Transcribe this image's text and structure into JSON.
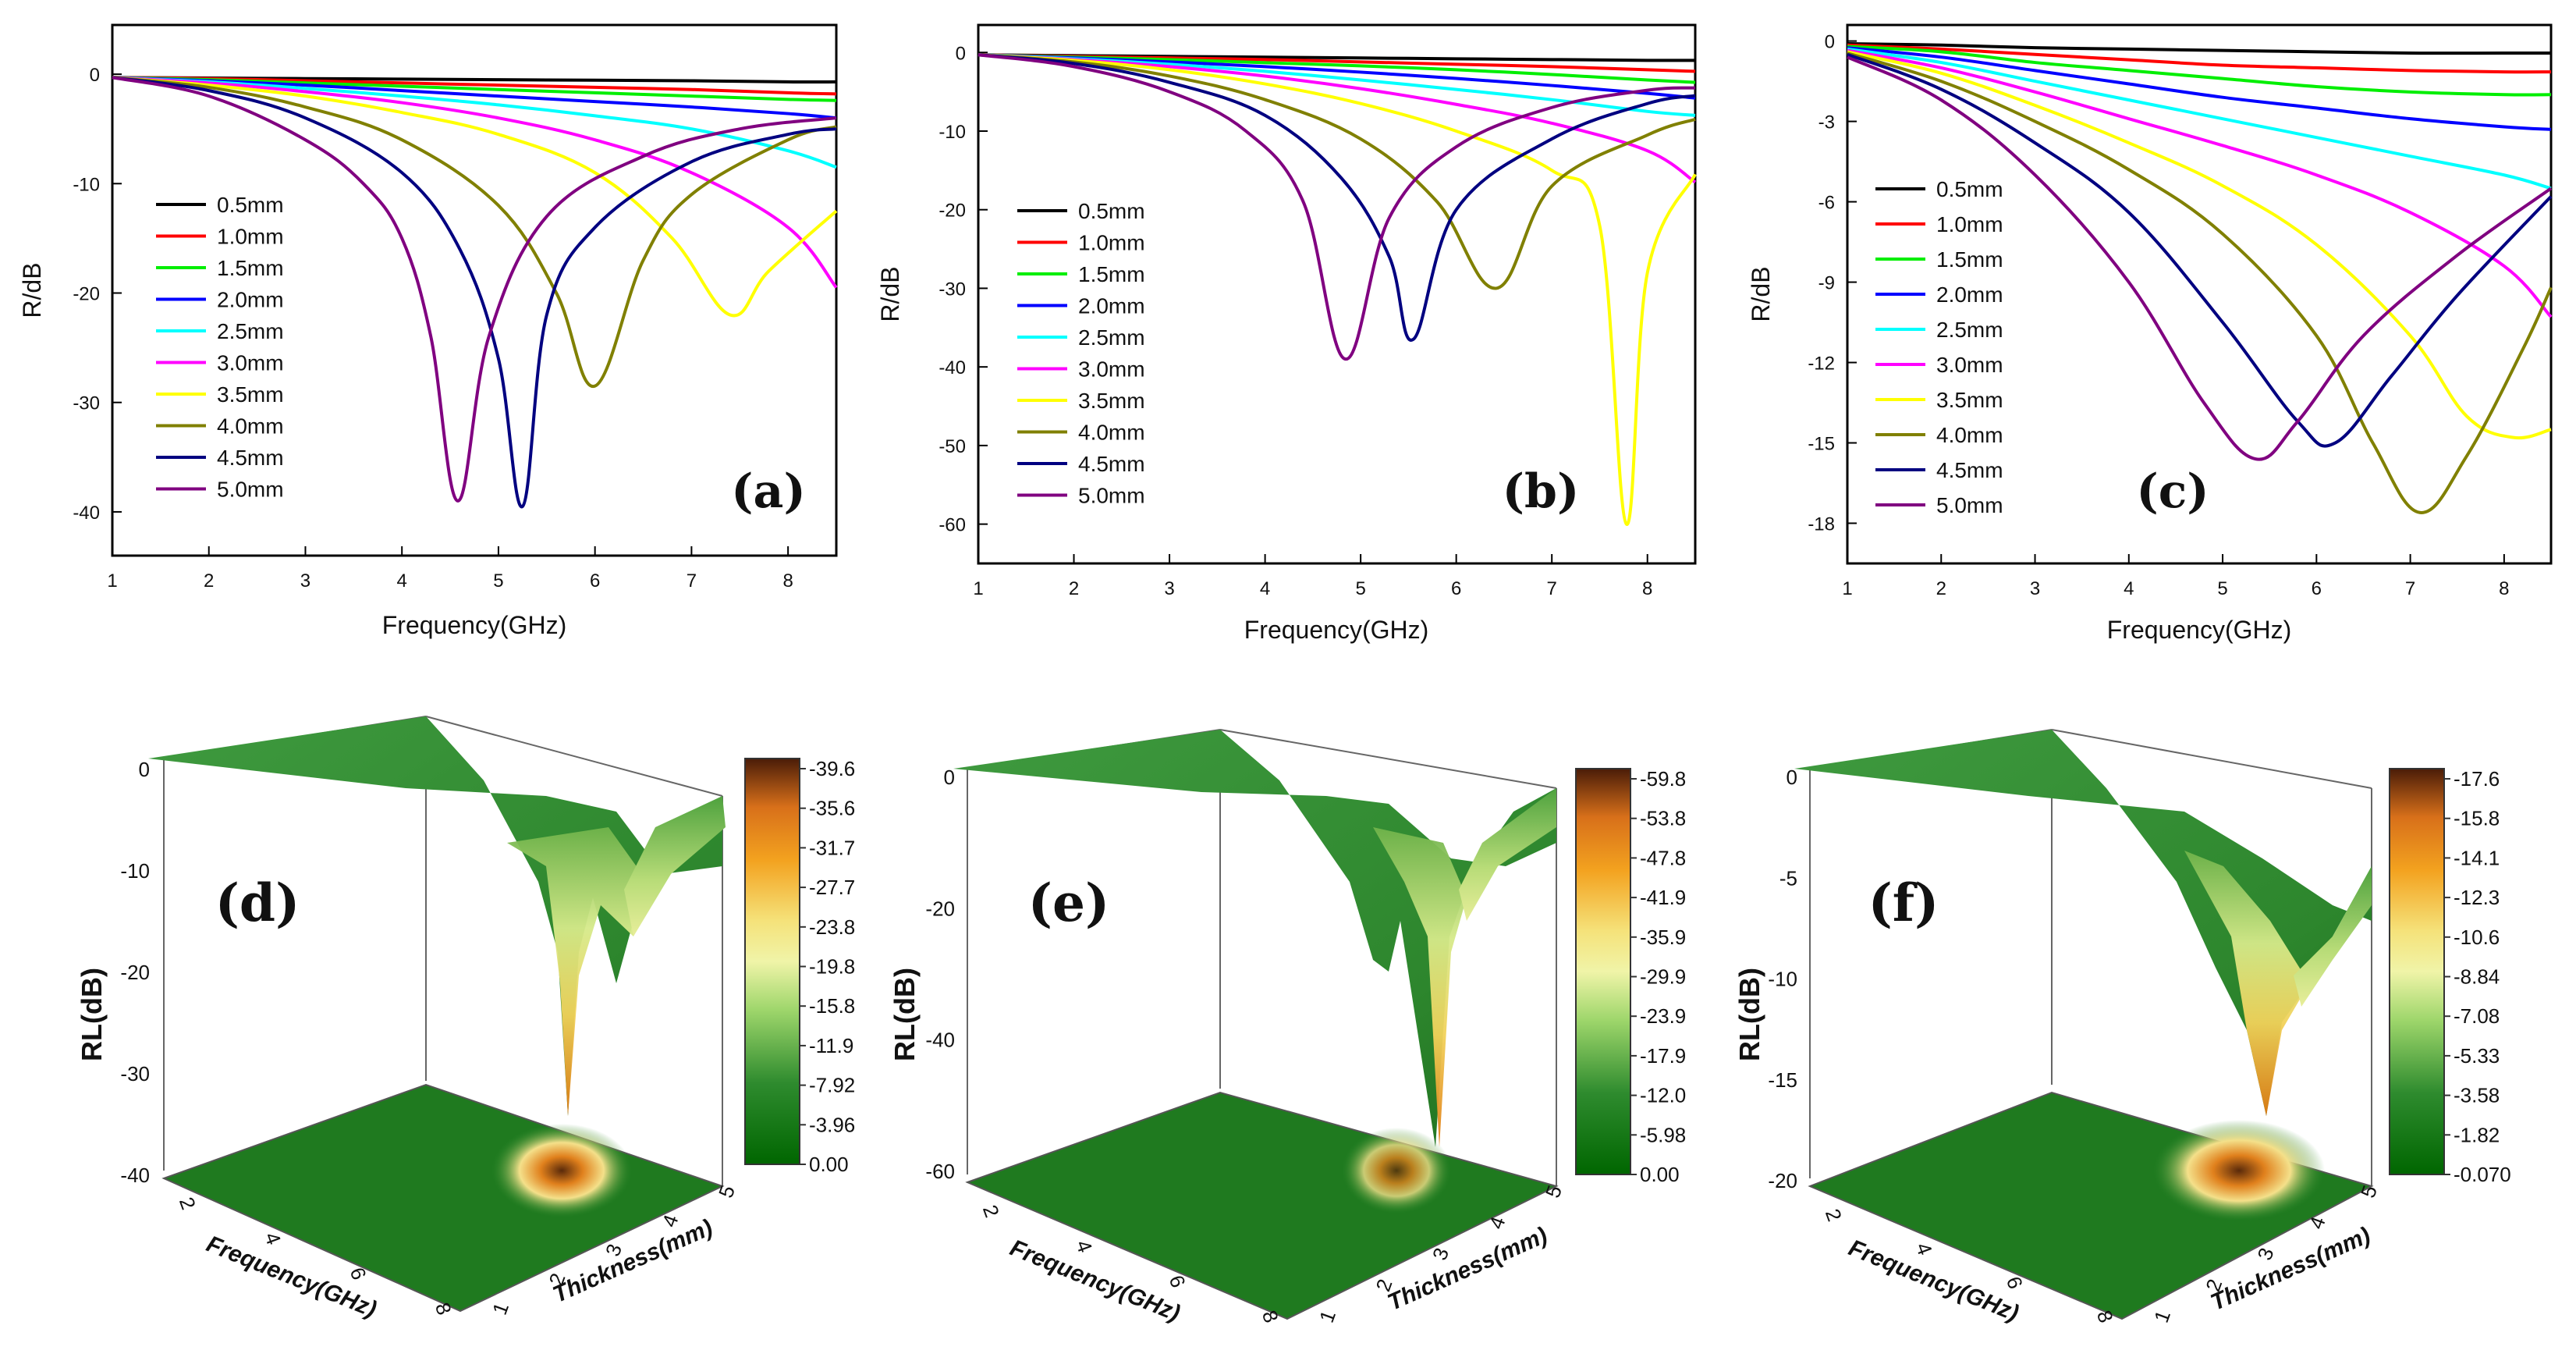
{
  "figure": {
    "colors": {
      "0.5mm": "#000000",
      "1.0mm": "#ff0000",
      "1.5mm": "#00ee00",
      "2.0mm": "#0000ff",
      "2.5mm": "#00ffff",
      "3.0mm": "#ff00ff",
      "3.5mm": "#ffff00",
      "4.0mm": "#808000",
      "4.5mm": "#000080",
      "5.0mm": "#800080"
    }
  },
  "chart_data": [
    {
      "id": "a",
      "type": "line",
      "panel_label": "(a)",
      "xlabel": "Frequency(GHz)",
      "ylabel": "R/dB",
      "xlim": [
        1,
        8.5
      ],
      "ylim": [
        -44,
        4.5
      ],
      "xticks": [
        "1",
        "2",
        "3",
        "4",
        "5",
        "6",
        "7",
        "8"
      ],
      "yticks": [
        "0",
        "-10",
        "-20",
        "-30",
        "-40"
      ],
      "legend": [
        "0.5mm",
        "1.0mm",
        "1.5mm",
        "2.0mm",
        "2.5mm",
        "3.0mm",
        "3.5mm",
        "4.0mm",
        "4.5mm",
        "5.0mm"
      ],
      "series": [
        {
          "name": "0.5mm",
          "x": [
            1,
            2,
            3,
            4,
            5,
            6,
            7,
            8,
            8.5
          ],
          "values": [
            -0.3,
            -0.35,
            -0.4,
            -0.45,
            -0.5,
            -0.55,
            -0.6,
            -0.7,
            -0.7
          ]
        },
        {
          "name": "1.0mm",
          "x": [
            1,
            2,
            3,
            4,
            5,
            6,
            7,
            8,
            8.5
          ],
          "values": [
            -0.3,
            -0.4,
            -0.6,
            -0.8,
            -1.0,
            -1.2,
            -1.4,
            -1.7,
            -1.8
          ]
        },
        {
          "name": "1.5mm",
          "x": [
            1,
            2,
            3,
            4,
            5,
            6,
            7,
            8,
            8.5
          ],
          "values": [
            -0.3,
            -0.5,
            -0.8,
            -1.1,
            -1.4,
            -1.7,
            -2.0,
            -2.3,
            -2.4
          ]
        },
        {
          "name": "2.0mm",
          "x": [
            1,
            2,
            3,
            4,
            5,
            6,
            7,
            8,
            8.5
          ],
          "values": [
            -0.3,
            -0.6,
            -1.0,
            -1.5,
            -2.0,
            -2.5,
            -3.0,
            -3.6,
            -4.0
          ]
        },
        {
          "name": "2.5mm",
          "x": [
            1,
            2,
            3,
            4,
            5,
            6,
            7,
            8,
            8.5
          ],
          "values": [
            -0.3,
            -0.7,
            -1.3,
            -2.0,
            -2.8,
            -3.8,
            -5.0,
            -7.0,
            -8.5
          ]
        },
        {
          "name": "3.0mm",
          "x": [
            1,
            2,
            3,
            4,
            5,
            6,
            7,
            8,
            8.5
          ],
          "values": [
            -0.3,
            -0.8,
            -1.6,
            -2.6,
            -4.0,
            -6.0,
            -9.0,
            -14.0,
            -19.5
          ]
        },
        {
          "name": "3.5mm",
          "x": [
            1,
            2,
            3,
            4,
            5,
            6,
            6.8,
            7.4,
            7.8,
            8.5
          ],
          "values": [
            -0.3,
            -1.0,
            -2.0,
            -3.5,
            -5.5,
            -9.0,
            -15.0,
            -22.0,
            -18.0,
            -12.5
          ]
        },
        {
          "name": "4.0mm",
          "x": [
            1,
            2,
            3,
            4,
            5,
            5.6,
            6.0,
            6.5,
            7,
            8,
            8.5
          ],
          "values": [
            -0.3,
            -1.2,
            -3.0,
            -6.0,
            -12.0,
            -20.0,
            -28.5,
            -17.0,
            -11.0,
            -6.0,
            -4.8
          ]
        },
        {
          "name": "4.5mm",
          "x": [
            1,
            2,
            3,
            4,
            4.6,
            5.0,
            5.25,
            5.5,
            6,
            7,
            8,
            8.5
          ],
          "values": [
            -0.3,
            -1.5,
            -4.0,
            -9.0,
            -16.0,
            -26.0,
            -39.5,
            -22.0,
            -14.0,
            -8.0,
            -5.5,
            -5.0
          ]
        },
        {
          "name": "5.0mm",
          "x": [
            1,
            2,
            3,
            3.6,
            4,
            4.3,
            4.58,
            4.9,
            5.5,
            6.5,
            7.5,
            8.5
          ],
          "values": [
            -0.3,
            -2.0,
            -6.0,
            -10.0,
            -15.0,
            -24.0,
            -39.0,
            -24.0,
            -13.0,
            -7.5,
            -5.0,
            -4.0
          ]
        }
      ]
    },
    {
      "id": "b",
      "type": "line",
      "panel_label": "(b)",
      "xlabel": "Frequency(GHz)",
      "ylabel": "R/dB",
      "xlim": [
        1,
        8.5
      ],
      "ylim": [
        -65,
        3.5
      ],
      "xticks": [
        "1",
        "2",
        "3",
        "4",
        "5",
        "6",
        "7",
        "8"
      ],
      "yticks": [
        "0",
        "-10",
        "-20",
        "-30",
        "-40",
        "-50",
        "-60"
      ],
      "legend": [
        "0.5mm",
        "1.0mm",
        "1.5mm",
        "2.0mm",
        "2.5mm",
        "3.0mm",
        "3.5mm",
        "4.0mm",
        "4.5mm",
        "5.0mm"
      ],
      "series": [
        {
          "name": "0.5mm",
          "x": [
            1,
            2,
            3,
            4,
            5,
            6,
            7,
            8,
            8.5
          ],
          "values": [
            -0.3,
            -0.4,
            -0.5,
            -0.6,
            -0.7,
            -0.8,
            -0.9,
            -1.0,
            -1.0
          ]
        },
        {
          "name": "1.0mm",
          "x": [
            1,
            2,
            3,
            4,
            5,
            6,
            7,
            8,
            8.5
          ],
          "values": [
            -0.3,
            -0.5,
            -0.7,
            -0.9,
            -1.2,
            -1.5,
            -1.8,
            -2.2,
            -2.4
          ]
        },
        {
          "name": "1.5mm",
          "x": [
            1,
            2,
            3,
            4,
            5,
            6,
            7,
            8,
            8.5
          ],
          "values": [
            -0.3,
            -0.6,
            -0.9,
            -1.3,
            -1.7,
            -2.2,
            -2.8,
            -3.5,
            -3.8
          ]
        },
        {
          "name": "2.0mm",
          "x": [
            1,
            2,
            3,
            4,
            5,
            6,
            7,
            8,
            8.5
          ],
          "values": [
            -0.3,
            -0.7,
            -1.2,
            -1.8,
            -2.5,
            -3.3,
            -4.2,
            -5.2,
            -5.8
          ]
        },
        {
          "name": "2.5mm",
          "x": [
            1,
            2,
            3,
            4,
            5,
            6,
            7,
            8,
            8.5
          ],
          "values": [
            -0.3,
            -0.8,
            -1.5,
            -2.4,
            -3.5,
            -4.7,
            -6.0,
            -7.5,
            -8.0
          ]
        },
        {
          "name": "3.0mm",
          "x": [
            1,
            2,
            3,
            4,
            5,
            6,
            7,
            8,
            8.5
          ],
          "values": [
            -0.3,
            -0.9,
            -1.8,
            -3.0,
            -4.6,
            -6.6,
            -9.0,
            -12.5,
            -16.5
          ]
        },
        {
          "name": "3.5mm",
          "x": [
            1,
            2,
            3,
            4,
            5,
            6,
            7,
            7.5,
            7.78,
            8.0,
            8.5
          ],
          "values": [
            -0.3,
            -1.0,
            -2.2,
            -4.0,
            -6.5,
            -10.0,
            -15.0,
            -22.0,
            -60.0,
            -28.0,
            -15.5
          ]
        },
        {
          "name": "4.0mm",
          "x": [
            1,
            2,
            3,
            4,
            5,
            5.8,
            6.42,
            7,
            8,
            8.5
          ],
          "values": [
            -0.3,
            -1.2,
            -3.0,
            -6.0,
            -11.0,
            -19.0,
            -30.0,
            -17.0,
            -10.5,
            -8.5
          ]
        },
        {
          "name": "4.5mm",
          "x": [
            1,
            2,
            3,
            4,
            4.8,
            5.3,
            5.55,
            6,
            7,
            8,
            8.5
          ],
          "values": [
            -0.3,
            -1.4,
            -3.8,
            -8.0,
            -16.0,
            -26.0,
            -36.5,
            -20.0,
            -11.0,
            -6.5,
            -5.5
          ]
        },
        {
          "name": "5.0mm",
          "x": [
            1,
            2,
            3,
            3.8,
            4.4,
            4.84,
            5.3,
            6,
            7,
            8,
            8.5
          ],
          "values": [
            -0.3,
            -1.8,
            -5.0,
            -10.0,
            -19.0,
            -39.0,
            -21.0,
            -12.0,
            -7.0,
            -4.8,
            -4.5
          ]
        }
      ]
    },
    {
      "id": "c",
      "type": "line",
      "panel_label": "(c)",
      "xlabel": "Frequency(GHz)",
      "ylabel": "R/dB",
      "xlim": [
        1,
        8.5
      ],
      "ylim": [
        -19.5,
        0.6
      ],
      "xticks": [
        "1",
        "2",
        "3",
        "4",
        "5",
        "6",
        "7",
        "8"
      ],
      "yticks": [
        "0",
        "-3",
        "-6",
        "-9",
        "-12",
        "-15",
        "-18"
      ],
      "legend": [
        "0.5mm",
        "1.0mm",
        "1.5mm",
        "2.0mm",
        "2.5mm",
        "3.0mm",
        "3.5mm",
        "4.0mm",
        "4.5mm",
        "5.0mm"
      ],
      "series": [
        {
          "name": "0.5mm",
          "x": [
            1,
            2,
            3,
            4,
            5,
            6,
            7,
            8,
            8.5
          ],
          "values": [
            -0.1,
            -0.15,
            -0.25,
            -0.3,
            -0.35,
            -0.4,
            -0.45,
            -0.45,
            -0.45
          ]
        },
        {
          "name": "1.0mm",
          "x": [
            1,
            2,
            3,
            4,
            5,
            6,
            7,
            8,
            8.5
          ],
          "values": [
            -0.15,
            -0.3,
            -0.5,
            -0.7,
            -0.9,
            -1.0,
            -1.1,
            -1.15,
            -1.15
          ]
        },
        {
          "name": "1.5mm",
          "x": [
            1,
            2,
            3,
            4,
            5,
            6,
            7,
            8,
            8.5
          ],
          "values": [
            -0.2,
            -0.4,
            -0.8,
            -1.1,
            -1.4,
            -1.7,
            -1.9,
            -2.0,
            -2.0
          ]
        },
        {
          "name": "2.0mm",
          "x": [
            1,
            2,
            3,
            4,
            5,
            6,
            7,
            8,
            8.5
          ],
          "values": [
            -0.25,
            -0.6,
            -1.1,
            -1.6,
            -2.1,
            -2.5,
            -2.9,
            -3.2,
            -3.3
          ]
        },
        {
          "name": "2.5mm",
          "x": [
            1,
            2,
            3,
            4,
            5,
            6,
            7,
            8,
            8.5
          ],
          "values": [
            -0.3,
            -0.8,
            -1.5,
            -2.2,
            -2.9,
            -3.6,
            -4.3,
            -5.0,
            -5.5
          ]
        },
        {
          "name": "3.0mm",
          "x": [
            1,
            2,
            3,
            4,
            5,
            6,
            7,
            8,
            8.5
          ],
          "values": [
            -0.35,
            -1.0,
            -1.9,
            -2.9,
            -3.9,
            -5.0,
            -6.4,
            -8.4,
            -10.3
          ]
        },
        {
          "name": "3.5mm",
          "x": [
            1,
            2,
            3,
            4,
            5,
            6,
            7,
            7.6,
            8.1,
            8.5
          ],
          "values": [
            -0.4,
            -1.2,
            -2.4,
            -3.8,
            -5.4,
            -7.6,
            -11.0,
            -14.0,
            -14.8,
            -14.5
          ]
        },
        {
          "name": "4.0mm",
          "x": [
            1,
            2,
            3,
            4,
            5,
            6,
            6.6,
            7.1,
            7.6,
            8.2,
            8.5
          ],
          "values": [
            -0.45,
            -1.5,
            -3.0,
            -4.8,
            -7.2,
            -11.0,
            -15.0,
            -17.6,
            -15.5,
            -11.5,
            -9.2
          ]
        },
        {
          "name": "4.5mm",
          "x": [
            1,
            2,
            3,
            4,
            5,
            5.8,
            6.2,
            6.8,
            7.5,
            8.5
          ],
          "values": [
            -0.5,
            -1.8,
            -3.8,
            -6.4,
            -10.5,
            -14.2,
            -15.0,
            -12.5,
            -9.5,
            -5.8
          ]
        },
        {
          "name": "5.0mm",
          "x": [
            1,
            2,
            3,
            4,
            4.8,
            5.35,
            5.8,
            6.5,
            7.5,
            8.5
          ],
          "values": [
            -0.6,
            -2.2,
            -5.0,
            -9.0,
            -13.5,
            -15.6,
            -14.2,
            -11.0,
            -8.0,
            -5.5
          ]
        }
      ]
    },
    {
      "id": "d",
      "type": "surface3d",
      "panel_label": "(d)",
      "xlabel": "Frequency(GHz)",
      "ylabel": "Thickness(mm)",
      "zlabel": "RL(dB)",
      "xticks": [
        "2",
        "4",
        "6",
        "8"
      ],
      "yticks": [
        "1",
        "2",
        "3",
        "4",
        "5"
      ],
      "zticks": [
        "0",
        "-10",
        "-20",
        "-30",
        "-40"
      ],
      "colorbar": [
        "-39.6",
        "-35.6",
        "-31.7",
        "-27.7",
        "-23.8",
        "-19.8",
        "-15.8",
        "-11.9",
        "-7.92",
        "-3.96",
        "0.00"
      ]
    },
    {
      "id": "e",
      "type": "surface3d",
      "panel_label": "(e)",
      "xlabel": "Frequency(GHz)",
      "ylabel": "Thickness(mm)",
      "zlabel": "RL(dB)",
      "xticks": [
        "2",
        "4",
        "6",
        "8"
      ],
      "yticks": [
        "1",
        "2",
        "3",
        "4",
        "5"
      ],
      "zticks": [
        "0",
        "-20",
        "-40",
        "-60"
      ],
      "colorbar": [
        "-59.8",
        "-53.8",
        "-47.8",
        "-41.9",
        "-35.9",
        "-29.9",
        "-23.9",
        "-17.9",
        "-12.0",
        "-5.98",
        "0.00"
      ]
    },
    {
      "id": "f",
      "type": "surface3d",
      "panel_label": "(f)",
      "xlabel": "Frequency(GHz)",
      "ylabel": "Thickness(mm)",
      "zlabel": "RL(dB)",
      "xticks": [
        "2",
        "4",
        "6",
        "8"
      ],
      "yticks": [
        "1",
        "2",
        "3",
        "4",
        "5"
      ],
      "zticks": [
        "0",
        "-5",
        "-10",
        "-15",
        "-20"
      ],
      "colorbar": [
        "-17.6",
        "-15.8",
        "-14.1",
        "-12.3",
        "-10.6",
        "-8.84",
        "-7.08",
        "-5.33",
        "-3.58",
        "-1.82",
        "-0.070"
      ]
    }
  ]
}
